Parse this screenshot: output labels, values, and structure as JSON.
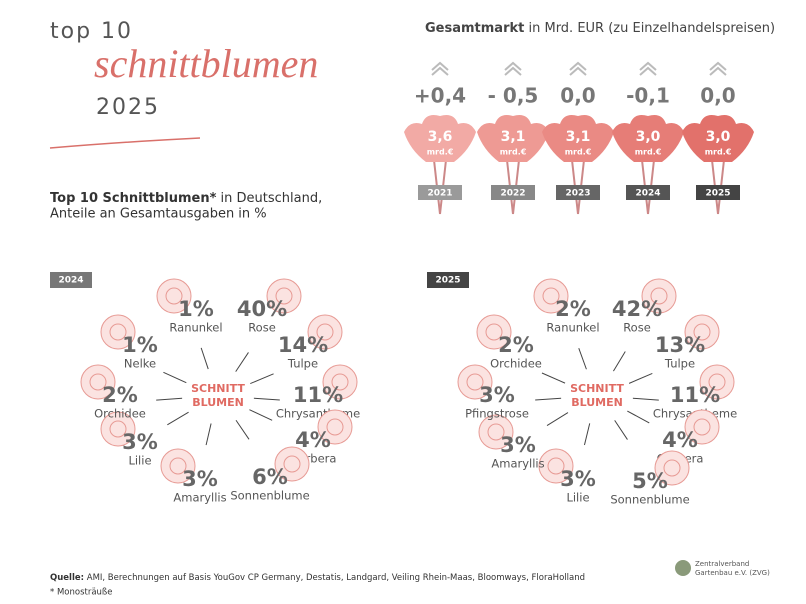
{
  "header": {
    "line1": "top 10",
    "script": "schnittblumen",
    "year": "2025"
  },
  "market": {
    "title_bold": "Gesamtmarkt",
    "title_rest": " in Mrd. EUR (zu Einzelhandelspreisen)",
    "items": [
      {
        "change": "+0,4",
        "value": "3,6",
        "unit": "mrd.€",
        "year": "2021"
      },
      {
        "change": "- 0,5",
        "value": "3,1",
        "unit": "mrd.€",
        "year": "2022"
      },
      {
        "change": "0,0",
        "value": "3,1",
        "unit": "mrd.€",
        "year": "2023"
      },
      {
        "change": "-0,1",
        "value": "3,0",
        "unit": "mrd.€",
        "year": "2024"
      },
      {
        "change": "0,0",
        "value": "3,0",
        "unit": "mrd.€",
        "year": "2025"
      }
    ]
  },
  "subtitle": {
    "bold": "Top 10 Schnittblumen*",
    "rest": " in Deutschland,",
    "line2": "Anteile an Gesamtausgaben in %"
  },
  "panels": [
    {
      "year": "2024",
      "center": [
        "SCHNITT",
        "BLUMEN"
      ],
      "flowers": [
        {
          "pct": "1%",
          "name": "Ranunkel"
        },
        {
          "pct": "40%",
          "name": "Rose"
        },
        {
          "pct": "14%",
          "name": "Tulpe"
        },
        {
          "pct": "11%",
          "name": "Chrysantheme"
        },
        {
          "pct": "4%",
          "name": "Gerbera"
        },
        {
          "pct": "6%",
          "name": "Sonnenblume"
        },
        {
          "pct": "3%",
          "name": "Amaryllis"
        },
        {
          "pct": "3%",
          "name": "Lilie"
        },
        {
          "pct": "2%",
          "name": "Orchidee"
        },
        {
          "pct": "1%",
          "name": "Nelke"
        }
      ]
    },
    {
      "year": "2025",
      "center": [
        "SCHNITT",
        "BLUMEN"
      ],
      "flowers": [
        {
          "pct": "2%",
          "name": "Ranunkel"
        },
        {
          "pct": "42%",
          "name": "Rose"
        },
        {
          "pct": "13%",
          "name": "Tulpe"
        },
        {
          "pct": "11%",
          "name": "Chrysantheme"
        },
        {
          "pct": "4%",
          "name": "Gerbera"
        },
        {
          "pct": "5%",
          "name": "Sonnenblume"
        },
        {
          "pct": "3%",
          "name": "Lilie"
        },
        {
          "pct": "3%",
          "name": "Amaryllis"
        },
        {
          "pct": "3%",
          "name": "Pfingstrose"
        },
        {
          "pct": "2%",
          "name": "Orchidee"
        }
      ]
    }
  ],
  "footer": {
    "source_bold": "Quelle:",
    "source_rest": " AMI, Berechnungen auf Basis YouGov CP Germany, Destatis, Landgard, Veiling Rhein-Maas, Bloomways, FloraHolland",
    "note": "* Monosträuße",
    "logo": [
      "Zentralverband",
      "Gartenbau e.V. (ZVG)"
    ]
  }
}
